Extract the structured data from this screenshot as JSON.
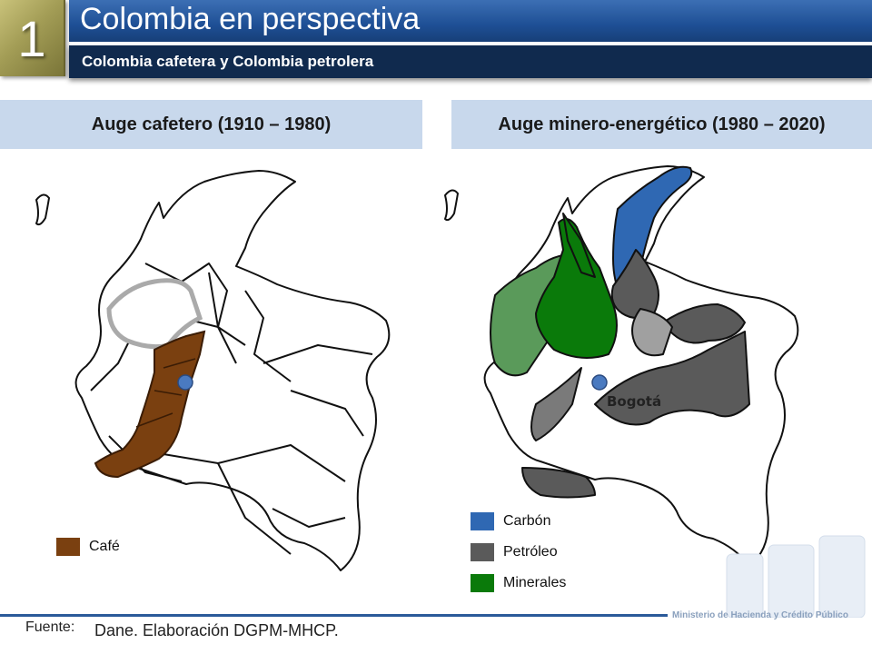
{
  "header": {
    "badge_number": "1",
    "title": "Colombia en perspectiva",
    "subtitle": "Colombia cafetera y Colombia petrolera"
  },
  "sections": {
    "left_title": "Auge cafetero (1910 – 1980)",
    "right_title": "Auge minero-energético (1980 – 2020)"
  },
  "map_labels": {
    "capital": "Bogotá"
  },
  "legend_left": [
    {
      "label": "Café",
      "color": "#7a4010"
    }
  ],
  "legend_right": [
    {
      "label": "Carbón",
      "color": "#2f68b3"
    },
    {
      "label": "Petróleo",
      "color": "#5a5a5a"
    },
    {
      "label": "Minerales",
      "color": "#0a7a0a"
    }
  ],
  "footer": {
    "source_label": "Fuente:",
    "source_text": "Dane. Elaboración DGPM-MHCP.",
    "ministry": "Ministerio de Hacienda y Crédito Público"
  }
}
